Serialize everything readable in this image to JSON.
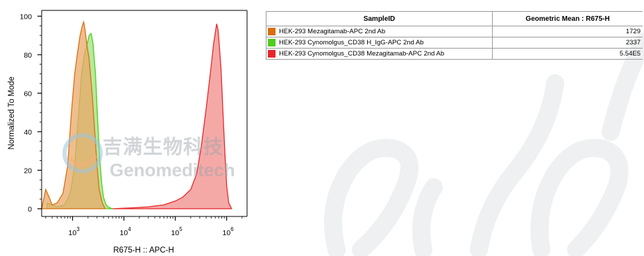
{
  "chart_data": {
    "type": "area",
    "xlabel": "R675-H :: APC-H",
    "ylabel": "Normalized To Mode",
    "x_scale": "log",
    "xlim": [
      250,
      2500000
    ],
    "ylim": [
      -4,
      103
    ],
    "yticks": [
      0,
      20,
      40,
      60,
      80,
      100
    ],
    "xtick_exponents": [
      "3",
      "4",
      "5",
      "6"
    ],
    "grid": false,
    "series": [
      {
        "name": "HEK-293 Cynomolgus_CD38 Mezagitamab-APC 2nd Ab",
        "color": "#e8262a",
        "fill": "#f08c8a",
        "x": [
          6000,
          15000,
          30000,
          60000,
          100000,
          140000,
          200000,
          260000,
          320000,
          400000,
          470000,
          520000,
          560000,
          600000,
          640000,
          680000,
          720000,
          780000,
          850000,
          930000,
          1000000,
          1100000,
          1250000
        ],
        "y": [
          0,
          0.5,
          1,
          2,
          4,
          6,
          10,
          18,
          32,
          52,
          68,
          78,
          86,
          91,
          96,
          93,
          85,
          72,
          50,
          28,
          12,
          3,
          0
        ]
      },
      {
        "name": "HEK-293 Cynomolgus_CD38 H_IgG-APC 2nd Ab",
        "color": "#4fce1c",
        "fill": "#9de27c",
        "x": [
          320,
          500,
          700,
          900,
          1100,
          1300,
          1500,
          1700,
          1900,
          2100,
          2300,
          2500,
          2800,
          3100,
          3400,
          3700,
          4000,
          4500,
          5000,
          6000
        ],
        "y": [
          3,
          1,
          2,
          8,
          22,
          48,
          70,
          80,
          85,
          90,
          91,
          86,
          70,
          45,
          25,
          13,
          6,
          2,
          0.8,
          0
        ]
      },
      {
        "name": "HEK-293 Mezagitamab-APC 2nd Ab",
        "color": "#d9700e",
        "fill": "#eba768",
        "x": [
          250,
          300,
          350,
          400,
          500,
          650,
          800,
          950,
          1100,
          1250,
          1400,
          1550,
          1650,
          1750,
          1900,
          2100,
          2400,
          2700,
          3000,
          3300,
          3800,
          4300
        ],
        "y": [
          0,
          10,
          6,
          2,
          3,
          8,
          22,
          50,
          70,
          81,
          90,
          95,
          97,
          93,
          85,
          78,
          60,
          40,
          22,
          10,
          3,
          0
        ]
      }
    ]
  },
  "watermark": {
    "cn_text": "吉满生物科技",
    "en_text": "Genomeditech"
  },
  "legend_table": {
    "header_sample": "SampleID",
    "header_value": "Geometric Mean : R675-H",
    "rows": [
      {
        "name": "HEK-293 Mezagitamab-APC 2nd Ab",
        "value": "1729",
        "color": "#d9700e"
      },
      {
        "name": "HEK-293 Cynomolgus_CD38 H_IgG-APC 2nd Ab",
        "value": "2337",
        "color": "#4fce1c"
      },
      {
        "name": "HEK-293 Cynomolgus_CD38 Mezagitamab-APC 2nd Ab",
        "value": "5.54E5",
        "color": "#e8262a"
      }
    ]
  }
}
